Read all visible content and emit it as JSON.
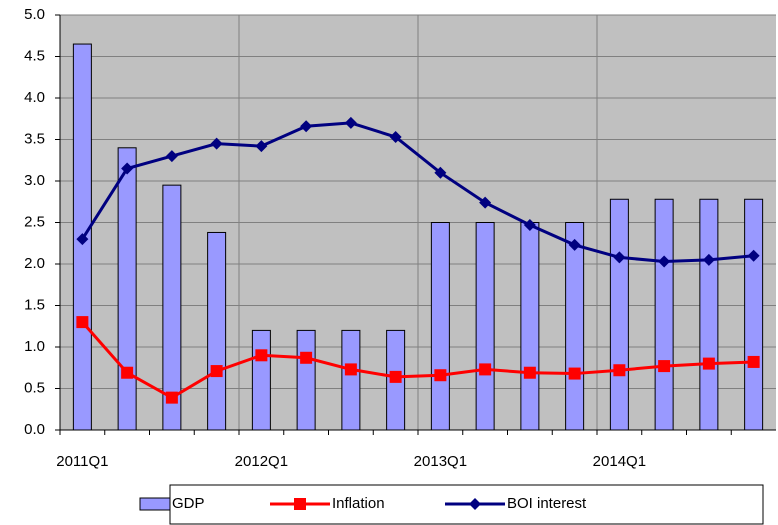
{
  "chart_data": {
    "type": "bar",
    "categories": [
      "2011Q1",
      null,
      null,
      null,
      "2012Q1",
      null,
      null,
      null,
      "2013Q1",
      null,
      null,
      null,
      "2014Q1",
      null,
      null,
      null
    ],
    "series": [
      {
        "name": "GDP",
        "type": "bar",
        "color": "#9999ff",
        "values": [
          4.65,
          3.4,
          2.95,
          2.38,
          1.2,
          1.2,
          1.2,
          1.2,
          2.5,
          2.5,
          2.5,
          2.5,
          2.78,
          2.78,
          2.78,
          2.78
        ]
      },
      {
        "name": "Inflation",
        "type": "line",
        "marker": "square",
        "color": "#ff0000",
        "values": [
          1.3,
          0.69,
          0.39,
          0.71,
          0.9,
          0.87,
          0.73,
          0.64,
          0.66,
          0.73,
          0.69,
          0.68,
          0.72,
          0.77,
          0.8,
          0.82
        ]
      },
      {
        "name": "BOI interest",
        "type": "line",
        "marker": "diamond",
        "color": "#000080",
        "values": [
          2.3,
          3.15,
          3.3,
          3.45,
          3.42,
          3.66,
          3.7,
          3.53,
          3.1,
          2.74,
          2.47,
          2.23,
          2.08,
          2.03,
          2.05,
          2.1
        ]
      }
    ],
    "ylim": [
      0,
      5
    ],
    "yticks": [
      {
        "value": 0,
        "label": "0.0"
      },
      0.5,
      {
        "value": 1,
        "label": "1.0"
      },
      1.5,
      {
        "value": 2,
        "label": "2.0"
      },
      2.5,
      {
        "value": 3,
        "label": "3.0"
      },
      3.5,
      {
        "value": 4,
        "label": "4.0"
      },
      4.5,
      {
        "value": 5,
        "label": "5.0"
      }
    ],
    "grid": true,
    "legend": "bottom"
  }
}
